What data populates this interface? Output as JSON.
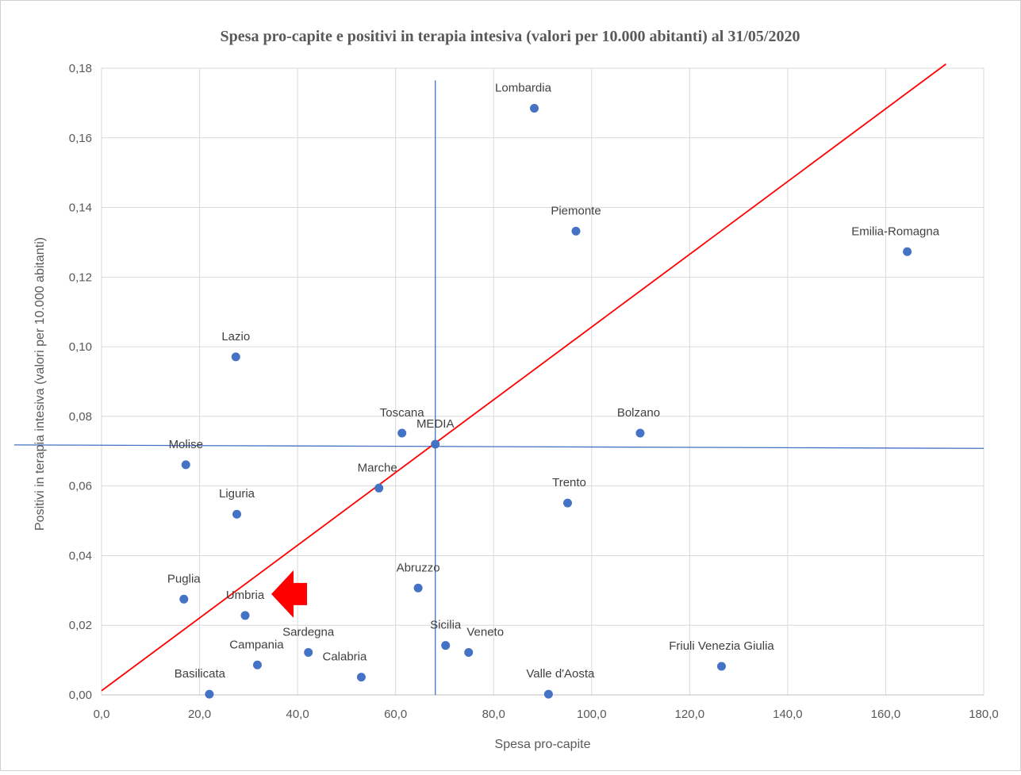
{
  "chart_data": {
    "type": "scatter",
    "title": "Spesa pro-capite e positivi in terapia intesiva (valori per 10.000 abitanti) al 31/05/2020",
    "xlabel": "Spesa pro-capite",
    "ylabel": "Positivi in terapia intesiva (valori per 10.000 abitanti)",
    "xlim": [
      0,
      180
    ],
    "ylim": [
      0,
      0.18
    ],
    "x_ticks": [
      "0,0",
      "20,0",
      "40,0",
      "60,0",
      "80,0",
      "100,0",
      "120,0",
      "140,0",
      "160,0",
      "180,0"
    ],
    "y_ticks": [
      "0,00",
      "0,02",
      "0,04",
      "0,06",
      "0,08",
      "0,10",
      "0,12",
      "0,14",
      "0,16",
      "0,18"
    ],
    "grid": true,
    "legend": "none",
    "point_color": "#4472c4",
    "points": [
      {
        "label": "Lombardia",
        "x": 88.3,
        "y": 0.1685
      },
      {
        "label": "Piemonte",
        "x": 96.8,
        "y": 0.1332
      },
      {
        "label": "Emilia-Romagna",
        "x": 164.4,
        "y": 0.1273
      },
      {
        "label": "Lazio",
        "x": 27.4,
        "y": 0.0971
      },
      {
        "label": "Toscana",
        "x": 61.3,
        "y": 0.0752
      },
      {
        "label": "Bolzano",
        "x": 109.9,
        "y": 0.0752
      },
      {
        "label": "MEDIA",
        "x": 68.1,
        "y": 0.072
      },
      {
        "label": "Molise",
        "x": 17.2,
        "y": 0.0661
      },
      {
        "label": "Marche",
        "x": 56.6,
        "y": 0.0594
      },
      {
        "label": "Trento",
        "x": 95.1,
        "y": 0.0551
      },
      {
        "label": "Liguria",
        "x": 27.6,
        "y": 0.0519
      },
      {
        "label": "Abruzzo",
        "x": 64.6,
        "y": 0.0307
      },
      {
        "label": "Puglia",
        "x": 16.8,
        "y": 0.0275
      },
      {
        "label": "Umbria",
        "x": 29.3,
        "y": 0.0228
      },
      {
        "label": "Sicilia",
        "x": 70.2,
        "y": 0.0142
      },
      {
        "label": "Sardegna",
        "x": 42.2,
        "y": 0.0122
      },
      {
        "label": "Veneto",
        "x": 74.9,
        "y": 0.0122
      },
      {
        "label": "Campania",
        "x": 31.8,
        "y": 0.0086
      },
      {
        "label": "Friuli Venezia Giulia",
        "x": 126.5,
        "y": 0.0082
      },
      {
        "label": "Calabria",
        "x": 53.0,
        "y": 0.0051
      },
      {
        "label": "Basilicata",
        "x": 22.0,
        "y": 0.0002
      },
      {
        "label": "Valle d'Aosta",
        "x": 91.2,
        "y": 0.0002
      }
    ],
    "mean_lines": {
      "color": "#4472c4",
      "vertical": {
        "x": 68.1,
        "y_from": 0.0,
        "y_to": 0.1765
      },
      "horizontal": {
        "x_from": 0.0,
        "x_to": 180.0,
        "y_from": 0.0718,
        "y_to": 0.0708
      }
    },
    "trend_line": {
      "color": "#ff0000",
      "from": [
        0.0,
        0.0012
      ],
      "to": [
        172.3,
        0.1812
      ]
    },
    "annotation": {
      "type": "arrow",
      "color": "#ff0000",
      "target_label": "Umbria",
      "direction": "left"
    }
  }
}
